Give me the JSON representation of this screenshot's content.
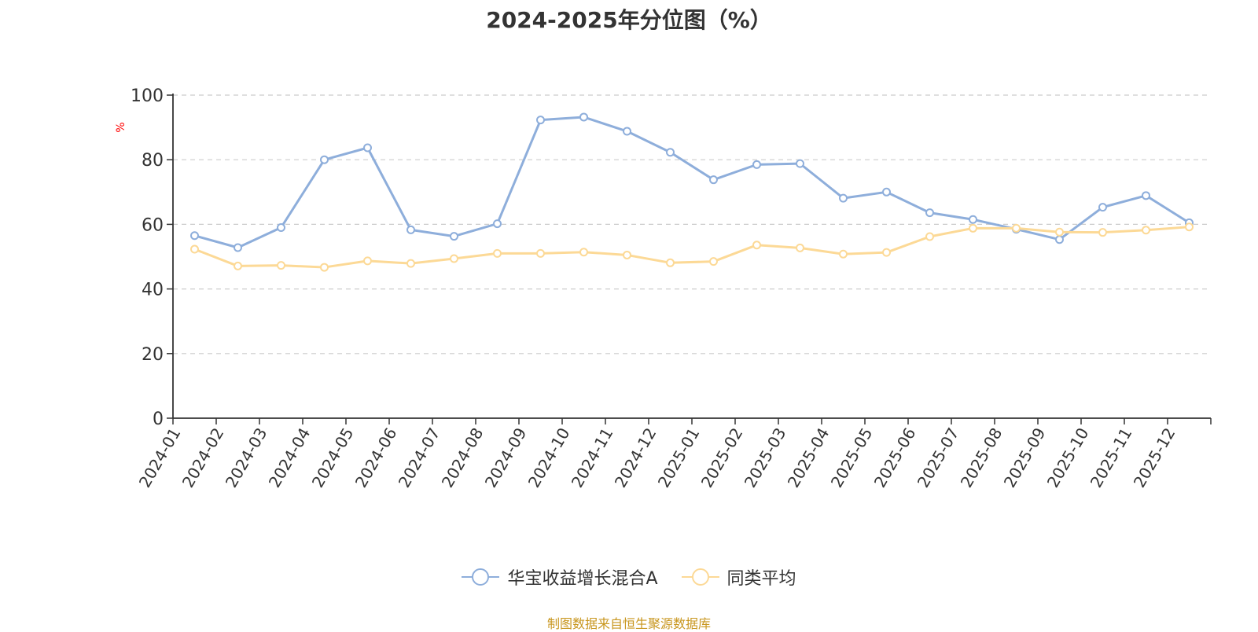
{
  "title": "2024-2025年分位图（%）",
  "source_note": "制图数据来自恒生聚源数据库",
  "colors": {
    "series_a": "#8eaedb",
    "series_b": "#fcd996",
    "grid": "#cccccc",
    "axis": "#333333",
    "unit": "#ff0000",
    "source": "#c8961e"
  },
  "chart_data": {
    "type": "line",
    "title": "2024-2025年分位图（%）",
    "ylabel": "%",
    "xlabel": "",
    "ylim": [
      0,
      100
    ],
    "yticks": [
      "0",
      "20",
      "40",
      "60",
      "80",
      "100"
    ],
    "grid": true,
    "legend_position": "bottom",
    "categories": [
      "2024-01",
      "2024-02",
      "2024-03",
      "2024-04",
      "2024-05",
      "2024-06",
      "2024-07",
      "2024-08",
      "2024-09",
      "2024-10",
      "2024-11",
      "2024-12",
      "2025-01",
      "2025-02",
      "2025-03",
      "2025-04",
      "2025-05",
      "2025-06",
      "2025-07",
      "2025-08",
      "2025-09",
      "2025-10",
      "2025-11",
      "2025-12"
    ],
    "series": [
      {
        "name": "华宝收益增长混合A",
        "values": [
          56.5,
          52.8,
          59.0,
          80.0,
          83.7,
          58.3,
          56.3,
          60.2,
          92.3,
          93.2,
          88.8,
          82.3,
          73.8,
          78.5,
          78.8,
          68.1,
          70.0,
          63.6,
          61.5,
          58.5,
          55.3,
          65.3,
          68.9,
          60.5
        ]
      },
      {
        "name": "同类平均",
        "values": [
          52.3,
          47.1,
          47.3,
          46.7,
          48.7,
          47.9,
          49.4,
          51.0,
          51.0,
          51.4,
          50.5,
          48.1,
          48.5,
          53.6,
          52.7,
          50.8,
          51.3,
          56.2,
          58.8,
          58.8,
          57.6,
          57.5,
          58.2,
          59.2
        ]
      }
    ]
  }
}
